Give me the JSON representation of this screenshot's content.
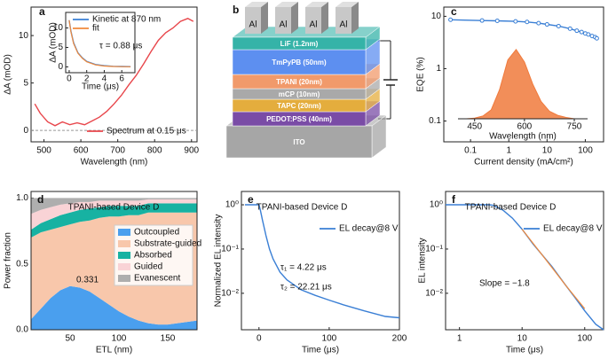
{
  "chart_data": [
    {
      "type": "line",
      "label": "a",
      "xlabel": "Wavelength (nm)",
      "ylabel": "ΔA (mOD)",
      "xlim": [
        465,
        915
      ],
      "xticks": [
        500,
        600,
        700,
        800,
        900
      ],
      "ylim": [
        -1.2,
        13
      ],
      "yticks": [
        0,
        5,
        10
      ],
      "x": [
        475,
        490,
        510,
        530,
        550,
        570,
        590,
        610,
        630,
        650,
        670,
        690,
        710,
        730,
        750,
        770,
        790,
        810,
        830,
        850,
        870,
        890,
        905
      ],
      "series": [
        {
          "name": "Spectrum at 0.15 μs",
          "color": "#e8464b",
          "values": [
            2.8,
            1.8,
            0.9,
            0.5,
            0.9,
            0.6,
            0.8,
            0.6,
            1.0,
            1.4,
            2.0,
            2.8,
            3.7,
            4.8,
            5.8,
            7.0,
            8.3,
            9.5,
            10.3,
            10.8,
            11.5,
            11.8,
            11.5
          ]
        }
      ],
      "inset": {
        "type": "line",
        "xlabel": "Time (μs)",
        "ylabel": "ΔA (mOD)",
        "xlim": [
          -0.4,
          7.5
        ],
        "xticks": [
          0,
          2,
          4,
          6
        ],
        "ylim": [
          -1.5,
          14
        ],
        "yticks": [
          0,
          5,
          10
        ],
        "x": [
          0,
          0.2,
          0.5,
          1,
          1.5,
          2,
          3,
          4,
          5,
          6,
          7
        ],
        "series": [
          {
            "name": "Kinetic at 870 nm",
            "color": "#3a7fd5",
            "values": [
              12,
              9.2,
              6.2,
              3.6,
              2.3,
              1.4,
              0.6,
              0.3,
              0.15,
              0.1,
              0.05
            ]
          },
          {
            "name": "fit",
            "color": "#f08a3c",
            "values": [
              12,
              9.0,
              6.0,
              3.5,
              2.2,
              1.3,
              0.5,
              0.2,
              0.1,
              0.05,
              0.02
            ]
          }
        ],
        "annotations": [
          "τ = 0.88 μs"
        ]
      }
    },
    {
      "type": "diagram",
      "label": "b",
      "electrodes": [
        "Al",
        "Al",
        "Al",
        "Al"
      ],
      "layers": [
        {
          "name": "LiF (1.2nm)",
          "color": "#35b3a8"
        },
        {
          "name": "TmPyPB (50nm)",
          "color": "#5d8ff0"
        },
        {
          "name": "TPANI (20nm)",
          "color": "#f19a6b"
        },
        {
          "name": "mCP (10nm)",
          "color": "#a9a9a9"
        },
        {
          "name": "TAPC (20nm)",
          "color": "#e4ad3d"
        },
        {
          "name": "PEDOT:PSS (40nm)",
          "color": "#7a4ca6"
        },
        {
          "name": "ITO",
          "color": "#a6a6a6"
        }
      ]
    },
    {
      "type": "line",
      "label": "c",
      "xlabel": "Current density (mA/cm²)",
      "ylabel": "EQE (%)",
      "xlog": true,
      "ylog": true,
      "xlim": [
        0.02,
        300
      ],
      "xticks": [
        0.1,
        1,
        10,
        100
      ],
      "ylim": [
        0.04,
        15
      ],
      "yticks": [
        0.1,
        1,
        10
      ],
      "markers": true,
      "x": [
        0.03,
        0.2,
        0.5,
        1.5,
        3,
        6,
        10,
        20,
        40,
        60,
        80,
        100,
        120,
        150,
        180,
        200
      ],
      "series": [
        {
          "color": "#3a7fd5",
          "values": [
            8.6,
            8.3,
            8.2,
            8.0,
            7.8,
            7.4,
            7.0,
            6.5,
            5.8,
            5.3,
            5.0,
            4.7,
            4.5,
            4.2,
            4.0,
            3.8
          ]
        }
      ],
      "inset": {
        "type": "area",
        "xlabel": "Wavelength (nm)",
        "xlim": [
          400,
          790
        ],
        "xticks": [
          450,
          600,
          750
        ],
        "ylim": [
          0,
          1.05
        ],
        "x": [
          425,
          450,
          475,
          500,
          525,
          550,
          575,
          600,
          625,
          650,
          675,
          700,
          725,
          750
        ],
        "series": [
          {
            "color": "#f07a3c",
            "values": [
              0.0,
              0.01,
              0.04,
              0.13,
              0.42,
              0.85,
              1.0,
              0.82,
              0.5,
              0.25,
              0.11,
              0.05,
              0.02,
              0.0
            ]
          }
        ]
      }
    },
    {
      "type": "stacked_area",
      "label": "d",
      "title": "TPANI-based Device D",
      "xlabel": "ETL (nm)",
      "ylabel": "Power fraction",
      "xlim": [
        10,
        180
      ],
      "xticks": [
        50,
        100,
        150
      ],
      "ylim": [
        0,
        1.05
      ],
      "yticks": [
        {
          "value": 0,
          "label": "0.0"
        },
        {
          "value": 0.5,
          "label": "0.5"
        },
        {
          "value": 1,
          "label": "1.0"
        }
      ],
      "x": [
        10,
        20,
        30,
        40,
        50,
        60,
        70,
        80,
        90,
        100,
        110,
        120,
        130,
        140,
        150,
        160,
        170,
        180
      ],
      "series": [
        {
          "name": "Outcoupled",
          "color": "#4a9fee",
          "values": [
            0.08,
            0.16,
            0.24,
            0.3,
            0.331,
            0.32,
            0.29,
            0.24,
            0.19,
            0.14,
            0.1,
            0.07,
            0.05,
            0.04,
            0.04,
            0.05,
            0.06,
            0.07
          ]
        },
        {
          "name": "Substrate-guided",
          "color": "#f8c7ab",
          "values": [
            0.62,
            0.58,
            0.52,
            0.48,
            0.469,
            0.5,
            0.54,
            0.61,
            0.67,
            0.72,
            0.77,
            0.8,
            0.84,
            0.85,
            0.85,
            0.84,
            0.83,
            0.82
          ]
        },
        {
          "name": "Absorbed",
          "color": "#17b2a2",
          "values": [
            0.06,
            0.07,
            0.08,
            0.09,
            0.09,
            0.09,
            0.09,
            0.08,
            0.08,
            0.08,
            0.07,
            0.07,
            0.07,
            0.07,
            0.07,
            0.07,
            0.07,
            0.07
          ]
        },
        {
          "name": "Guided",
          "color": "#f9d3d6",
          "values": [
            0.12,
            0.1,
            0.09,
            0.08,
            0.07,
            0.06,
            0.05,
            0.05,
            0.04,
            0.04,
            0.04,
            0.04,
            0.03,
            0.03,
            0.03,
            0.03,
            0.03,
            0.03
          ]
        },
        {
          "name": "Evanescent",
          "color": "#aeaeae",
          "values": [
            0.12,
            0.09,
            0.07,
            0.05,
            0.04,
            0.03,
            0.03,
            0.02,
            0.02,
            0.02,
            0.02,
            0.02,
            0.01,
            0.01,
            0.01,
            0.01,
            0.01,
            0.01
          ]
        }
      ],
      "annotations": [
        "0.331"
      ]
    },
    {
      "type": "line",
      "label": "e",
      "title": "TPANI-based Device D",
      "xlabel": "Time (μs)",
      "ylabel": "Normalized EL intensity",
      "ylog": true,
      "xlim": [
        -25,
        200
      ],
      "xticks": [
        0,
        100,
        200
      ],
      "ylim": [
        0.0015,
        2
      ],
      "yticks": [
        {
          "value": 1,
          "label": "10⁰"
        },
        {
          "value": 0.1,
          "label": "10⁻¹"
        },
        {
          "value": 0.01,
          "label": "10⁻²"
        }
      ],
      "x": [
        -20,
        -10,
        0,
        2,
        5,
        10,
        15,
        20,
        30,
        40,
        60,
        80,
        100,
        120,
        150,
        180,
        200
      ],
      "series": [
        {
          "name": "EL decay@8 V",
          "color": "#3a7fd5",
          "values": [
            1,
            1,
            1,
            0.75,
            0.45,
            0.2,
            0.1,
            0.06,
            0.03,
            0.02,
            0.012,
            0.009,
            0.007,
            0.0055,
            0.004,
            0.003,
            0.0028
          ]
        }
      ],
      "annotations": [
        "τ₁ = 4.22 μs",
        "τ₂ = 22.21 μs"
      ]
    },
    {
      "type": "line",
      "label": "f",
      "title": "TPANI-based Device D",
      "xlabel": "Time (μs)",
      "ylabel": "EL intensity",
      "xlog": true,
      "ylog": true,
      "xlim": [
        0.6,
        200
      ],
      "xticks": [
        1,
        10,
        100
      ],
      "ylim": [
        0.0015,
        2
      ],
      "yticks": [
        {
          "value": 1,
          "label": "10⁰"
        },
        {
          "value": 0.1,
          "label": "10⁻¹"
        },
        {
          "value": 0.01,
          "label": "10⁻²"
        }
      ],
      "x": [
        0.6,
        1,
        2,
        3,
        3.5,
        5,
        7,
        10,
        15,
        20,
        30,
        50,
        70,
        100,
        150,
        200
      ],
      "series": [
        {
          "name": "EL decay@8 V",
          "color": "#3a7fd5",
          "values": [
            1,
            1,
            1,
            1,
            0.97,
            0.75,
            0.5,
            0.28,
            0.13,
            0.08,
            0.04,
            0.015,
            0.008,
            0.004,
            0.002,
            0.0015
          ]
        },
        {
          "color": "#f08a3c",
          "x": [
            10,
            20,
            50,
            100
          ],
          "values": [
            0.28,
            0.08,
            0.015,
            0.0045
          ]
        }
      ],
      "annotations": [
        "Slope = −1.8"
      ]
    }
  ]
}
